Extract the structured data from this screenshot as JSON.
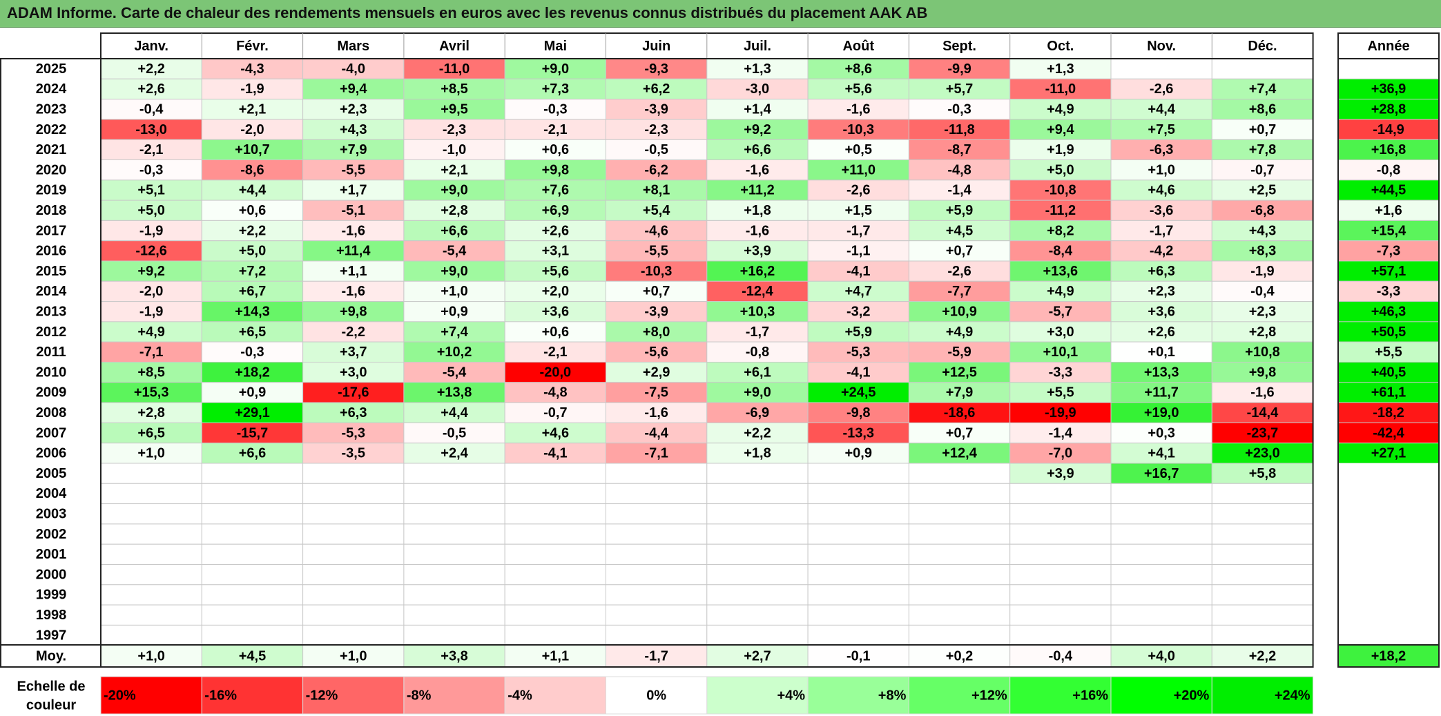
{
  "title": "ADAM Informe. Carte de chaleur des rendements mensuels en euros avec les revenus connus distribués du placement AAK AB",
  "chart_data": {
    "type": "heatmap",
    "title": "ADAM Informe. Carte de chaleur des rendements mensuels en euros avec les revenus connus distribués du placement AAK AB",
    "months": [
      "Janv.",
      "Févr.",
      "Mars",
      "Avril",
      "Mai",
      "Juin",
      "Juil.",
      "Août",
      "Sept.",
      "Oct.",
      "Nov.",
      "Déc."
    ],
    "year_header": "Année",
    "avg_label": "Moy.",
    "rows": [
      {
        "year": "2025",
        "values": [
          "+2,2",
          "-4,3",
          "-4,0",
          "-11,0",
          "+9,0",
          "-9,3",
          "+1,3",
          "+8,6",
          "-9,9",
          "+1,3",
          "",
          ""
        ],
        "annual": ""
      },
      {
        "year": "2024",
        "values": [
          "+2,6",
          "-1,9",
          "+9,4",
          "+8,5",
          "+7,3",
          "+6,2",
          "-3,0",
          "+5,6",
          "+5,7",
          "-11,0",
          "-2,6",
          "+7,4"
        ],
        "annual": "+36,9"
      },
      {
        "year": "2023",
        "values": [
          "-0,4",
          "+2,1",
          "+2,3",
          "+9,5",
          "-0,3",
          "-3,9",
          "+1,4",
          "-1,6",
          "-0,3",
          "+4,9",
          "+4,4",
          "+8,6"
        ],
        "annual": "+28,8"
      },
      {
        "year": "2022",
        "values": [
          "-13,0",
          "-2,0",
          "+4,3",
          "-2,3",
          "-2,1",
          "-2,3",
          "+9,2",
          "-10,3",
          "-11,8",
          "+9,4",
          "+7,5",
          "+0,7"
        ],
        "annual": "-14,9"
      },
      {
        "year": "2021",
        "values": [
          "-2,1",
          "+10,7",
          "+7,9",
          "-1,0",
          "+0,6",
          "-0,5",
          "+6,6",
          "+0,5",
          "-8,7",
          "+1,9",
          "-6,3",
          "+7,8"
        ],
        "annual": "+16,8"
      },
      {
        "year": "2020",
        "values": [
          "-0,3",
          "-8,6",
          "-5,5",
          "+2,1",
          "+9,8",
          "-6,2",
          "-1,6",
          "+11,0",
          "-4,8",
          "+5,0",
          "+1,0",
          "-0,7"
        ],
        "annual": "-0,8"
      },
      {
        "year": "2019",
        "values": [
          "+5,1",
          "+4,4",
          "+1,7",
          "+9,0",
          "+7,6",
          "+8,1",
          "+11,2",
          "-2,6",
          "-1,4",
          "-10,8",
          "+4,6",
          "+2,5"
        ],
        "annual": "+44,5"
      },
      {
        "year": "2018",
        "values": [
          "+5,0",
          "+0,6",
          "-5,1",
          "+2,8",
          "+6,9",
          "+5,4",
          "+1,8",
          "+1,5",
          "+5,9",
          "-11,2",
          "-3,6",
          "-6,8"
        ],
        "annual": "+1,6"
      },
      {
        "year": "2017",
        "values": [
          "-1,9",
          "+2,2",
          "-1,6",
          "+6,6",
          "+2,6",
          "-4,6",
          "-1,6",
          "-1,7",
          "+4,5",
          "+8,2",
          "-1,7",
          "+4,3"
        ],
        "annual": "+15,4"
      },
      {
        "year": "2016",
        "values": [
          "-12,6",
          "+5,0",
          "+11,4",
          "-5,4",
          "+3,1",
          "-5,5",
          "+3,9",
          "-1,1",
          "+0,7",
          "-8,4",
          "-4,2",
          "+8,3"
        ],
        "annual": "-7,3"
      },
      {
        "year": "2015",
        "values": [
          "+9,2",
          "+7,2",
          "+1,1",
          "+9,0",
          "+5,6",
          "-10,3",
          "+16,2",
          "-4,1",
          "-2,6",
          "+13,6",
          "+6,3",
          "-1,9"
        ],
        "annual": "+57,1"
      },
      {
        "year": "2014",
        "values": [
          "-2,0",
          "+6,7",
          "-1,6",
          "+1,0",
          "+2,0",
          "+0,7",
          "-12,4",
          "+4,7",
          "-7,7",
          "+4,9",
          "+2,3",
          "-0,4"
        ],
        "annual": "-3,3"
      },
      {
        "year": "2013",
        "values": [
          "-1,9",
          "+14,3",
          "+9,8",
          "+0,9",
          "+3,6",
          "-3,9",
          "+10,3",
          "-3,2",
          "+10,9",
          "-5,7",
          "+3,6",
          "+2,3"
        ],
        "annual": "+46,3"
      },
      {
        "year": "2012",
        "values": [
          "+4,9",
          "+6,5",
          "-2,2",
          "+7,4",
          "+0,6",
          "+8,0",
          "-1,7",
          "+5,9",
          "+4,9",
          "+3,0",
          "+2,6",
          "+2,8"
        ],
        "annual": "+50,5"
      },
      {
        "year": "2011",
        "values": [
          "-7,1",
          "-0,3",
          "+3,7",
          "+10,2",
          "-2,1",
          "-5,6",
          "-0,8",
          "-5,3",
          "-5,9",
          "+10,1",
          "+0,1",
          "+10,8"
        ],
        "annual": "+5,5"
      },
      {
        "year": "2010",
        "values": [
          "+8,5",
          "+18,2",
          "+3,0",
          "-5,4",
          "-20,0",
          "+2,9",
          "+6,1",
          "-4,1",
          "+12,5",
          "-3,3",
          "+13,3",
          "+9,8"
        ],
        "annual": "+40,5"
      },
      {
        "year": "2009",
        "values": [
          "+15,3",
          "+0,9",
          "-17,6",
          "+13,8",
          "-4,8",
          "-7,5",
          "+9,0",
          "+24,5",
          "+7,9",
          "+5,5",
          "+11,7",
          "-1,6"
        ],
        "annual": "+61,1"
      },
      {
        "year": "2008",
        "values": [
          "+2,8",
          "+29,1",
          "+6,3",
          "+4,4",
          "-0,7",
          "-1,6",
          "-6,9",
          "-9,8",
          "-18,6",
          "-19,9",
          "+19,0",
          "-14,4"
        ],
        "annual": "-18,2"
      },
      {
        "year": "2007",
        "values": [
          "+6,5",
          "-15,7",
          "-5,3",
          "-0,5",
          "+4,6",
          "-4,4",
          "+2,2",
          "-13,3",
          "+0,7",
          "-1,4",
          "+0,3",
          "-23,7"
        ],
        "annual": "-42,4"
      },
      {
        "year": "2006",
        "values": [
          "+1,0",
          "+6,6",
          "-3,5",
          "+2,4",
          "-4,1",
          "-7,1",
          "+1,8",
          "+0,9",
          "+12,4",
          "-7,0",
          "+4,1",
          "+23,0"
        ],
        "annual": "+27,1"
      },
      {
        "year": "2005",
        "values": [
          "",
          "",
          "",
          "",
          "",
          "",
          "",
          "",
          "",
          "+3,9",
          "+16,7",
          "+5,8"
        ],
        "annual": ""
      },
      {
        "year": "2004",
        "values": [
          "",
          "",
          "",
          "",
          "",
          "",
          "",
          "",
          "",
          "",
          "",
          ""
        ],
        "annual": ""
      },
      {
        "year": "2003",
        "values": [
          "",
          "",
          "",
          "",
          "",
          "",
          "",
          "",
          "",
          "",
          "",
          ""
        ],
        "annual": ""
      },
      {
        "year": "2002",
        "values": [
          "",
          "",
          "",
          "",
          "",
          "",
          "",
          "",
          "",
          "",
          "",
          ""
        ],
        "annual": ""
      },
      {
        "year": "2001",
        "values": [
          "",
          "",
          "",
          "",
          "",
          "",
          "",
          "",
          "",
          "",
          "",
          ""
        ],
        "annual": ""
      },
      {
        "year": "2000",
        "values": [
          "",
          "",
          "",
          "",
          "",
          "",
          "",
          "",
          "",
          "",
          "",
          ""
        ],
        "annual": ""
      },
      {
        "year": "1999",
        "values": [
          "",
          "",
          "",
          "",
          "",
          "",
          "",
          "",
          "",
          "",
          "",
          ""
        ],
        "annual": ""
      },
      {
        "year": "1998",
        "values": [
          "",
          "",
          "",
          "",
          "",
          "",
          "",
          "",
          "",
          "",
          "",
          ""
        ],
        "annual": ""
      },
      {
        "year": "1997",
        "values": [
          "",
          "",
          "",
          "",
          "",
          "",
          "",
          "",
          "",
          "",
          "",
          ""
        ],
        "annual": ""
      }
    ],
    "averages": [
      "+1,0",
      "+4,5",
      "+1,0",
      "+3,8",
      "+1,1",
      "-1,7",
      "+2,7",
      "-0,1",
      "+0,2",
      "-0,4",
      "+4,0",
      "+2,2"
    ],
    "average_annual": "+18,2",
    "scale_label_line1": "Echelle de",
    "scale_label_line2": "couleur",
    "scale": [
      {
        "label": "-20%",
        "value": -20,
        "color": "#ff0000"
      },
      {
        "label": "-16%",
        "value": -16,
        "color": "#ff3333"
      },
      {
        "label": "-12%",
        "value": -12,
        "color": "#ff6666"
      },
      {
        "label": "-8%",
        "value": -8,
        "color": "#ff9999"
      },
      {
        "label": "-4%",
        "value": -4,
        "color": "#ffcccc"
      },
      {
        "label": "0%",
        "value": 0,
        "color": "#ffffff"
      },
      {
        "label": "+4%",
        "value": 4,
        "color": "#ccffcc"
      },
      {
        "label": "+8%",
        "value": 8,
        "color": "#99ff99"
      },
      {
        "label": "+12%",
        "value": 12,
        "color": "#66ff66"
      },
      {
        "label": "+16%",
        "value": 16,
        "color": "#33ff33"
      },
      {
        "label": "+20%",
        "value": 20,
        "color": "#00ff00"
      },
      {
        "label": "+24%",
        "value": 24,
        "color": "#00ee00"
      }
    ]
  }
}
